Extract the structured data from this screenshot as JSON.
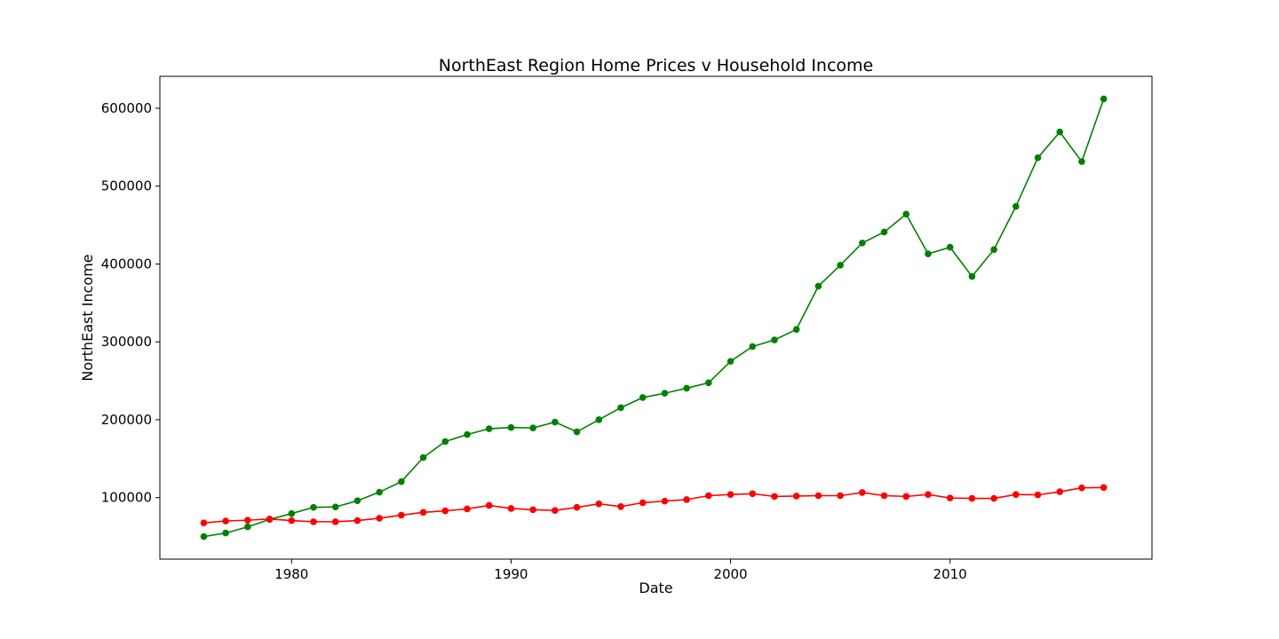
{
  "chart_data": {
    "type": "line",
    "title": "NorthEast Region Home Prices v Household Income",
    "xlabel": "Date",
    "ylabel": "NorthEast Income",
    "xlim": [
      1974,
      2019.2
    ],
    "ylim": [
      21000,
      641000
    ],
    "xticks": [
      1980,
      1990,
      2000,
      2010
    ],
    "xtick_labels": [
      "1980",
      "1990",
      "2000",
      "2010"
    ],
    "yticks": [
      100000,
      200000,
      300000,
      400000,
      500000,
      600000
    ],
    "ytick_labels": [
      "100000",
      "200000",
      "300000",
      "400000",
      "500000",
      "600000"
    ],
    "grid": false,
    "legend": null,
    "x": [
      1976,
      1977,
      1978,
      1979,
      1980,
      1981,
      1982,
      1983,
      1984,
      1985,
      1986,
      1987,
      1988,
      1989,
      1990,
      1991,
      1992,
      1993,
      1994,
      1995,
      1996,
      1997,
      1998,
      1999,
      2000,
      2001,
      2002,
      2003,
      2004,
      2005,
      2006,
      2007,
      2008,
      2009,
      2010,
      2011,
      2012,
      2013,
      2014,
      2015,
      2016,
      2017
    ],
    "series": [
      {
        "color": "#008000",
        "marker": "circle",
        "values": [
          50000,
          54500,
          62500,
          72000,
          79500,
          87500,
          88000,
          96000,
          107000,
          120500,
          151500,
          172000,
          181000,
          188500,
          190000,
          189500,
          197000,
          184500,
          200000,
          215500,
          228500,
          234000,
          240500,
          247500,
          275000,
          294000,
          302500,
          316000,
          371500,
          398500,
          427000,
          441000,
          464000,
          413000,
          421500,
          384000,
          418500,
          474000,
          536500,
          569500,
          531500,
          612000
        ]
      },
      {
        "color": "#ff0000",
        "marker": "circle",
        "values": [
          67500,
          70000,
          71000,
          72500,
          70500,
          69000,
          69000,
          70500,
          73500,
          77500,
          81000,
          83000,
          85500,
          90000,
          86000,
          84500,
          83500,
          87500,
          92000,
          88500,
          93500,
          95500,
          97500,
          102500,
          104000,
          105000,
          101500,
          102000,
          102500,
          102500,
          106500,
          102500,
          101500,
          104000,
          99500,
          99000,
          99000,
          104000,
          103500,
          107500,
          112500,
          113000
        ]
      }
    ]
  }
}
